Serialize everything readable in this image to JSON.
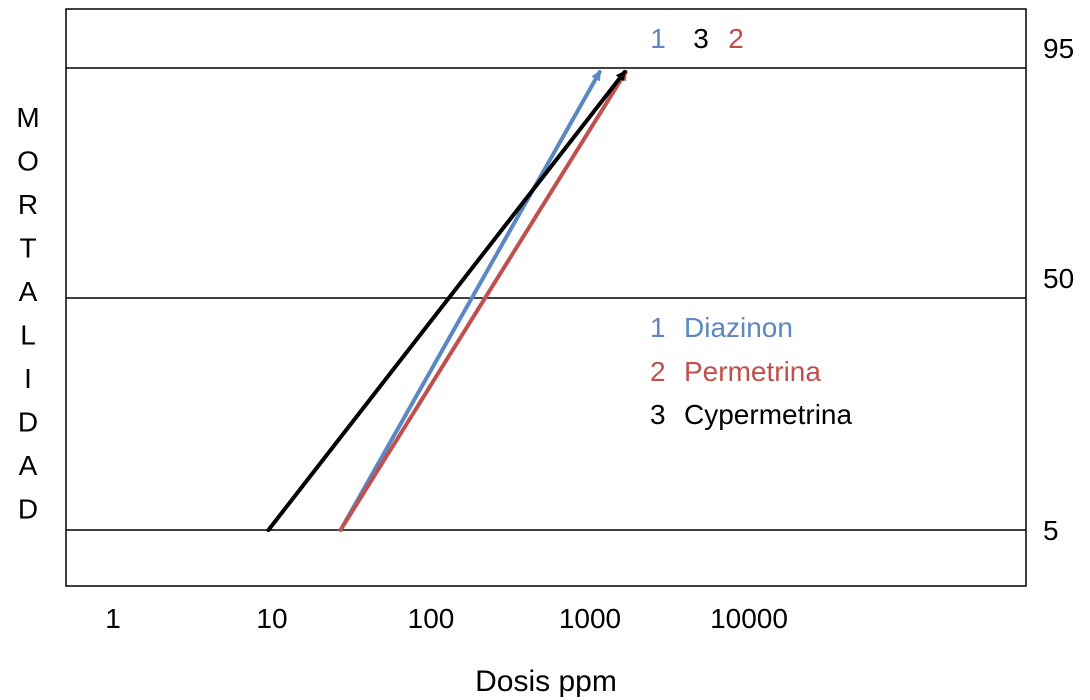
{
  "chart_data": {
    "type": "line",
    "xlabel": "Dosis ppm",
    "ylabel_letters": [
      "M",
      "O",
      "R",
      "T",
      "A",
      "L",
      "I",
      "D",
      "A",
      "D"
    ],
    "x_scale": "log",
    "xlim": [
      0.7,
      5500
    ],
    "x_ticks": [
      {
        "value": 1,
        "label": "1"
      },
      {
        "value": 10,
        "label": "10"
      },
      {
        "value": 100,
        "label": "100"
      },
      {
        "value": 1000,
        "label": "1000"
      },
      {
        "value": 10000,
        "label": "10000"
      }
    ],
    "y_levels": [
      {
        "value": 95,
        "label": "95"
      },
      {
        "value": 50,
        "label": "50"
      },
      {
        "value": 5,
        "label": "5"
      }
    ],
    "series": [
      {
        "id": "1",
        "name": "Diazinon",
        "color": "#5b87c2",
        "points": [
          {
            "x": 27,
            "y": 5
          },
          {
            "x": 1150,
            "y": 95
          }
        ]
      },
      {
        "id": "2",
        "name": "Permetrina",
        "color": "#c0504d",
        "points": [
          {
            "x": 27,
            "y": 5
          },
          {
            "x": 1680,
            "y": 95
          }
        ]
      },
      {
        "id": "3",
        "name": "Cypermetrina",
        "color": "#000000",
        "points": [
          {
            "x": 9.5,
            "y": 5
          },
          {
            "x": 1650,
            "y": 95
          }
        ]
      }
    ],
    "arrow_labels": [
      {
        "text": "1",
        "color": "#5b87c2"
      },
      {
        "text": "3",
        "color": "#000000"
      },
      {
        "text": "2",
        "color": "#c0504d"
      }
    ],
    "legend": [
      {
        "num": "1",
        "name": "Diazinon",
        "color": "#5b87c2"
      },
      {
        "num": "2",
        "name": "Permetrina",
        "color": "#c0504d"
      },
      {
        "num": "3",
        "name": "Cypermetrina",
        "color": "#000000"
      }
    ]
  }
}
